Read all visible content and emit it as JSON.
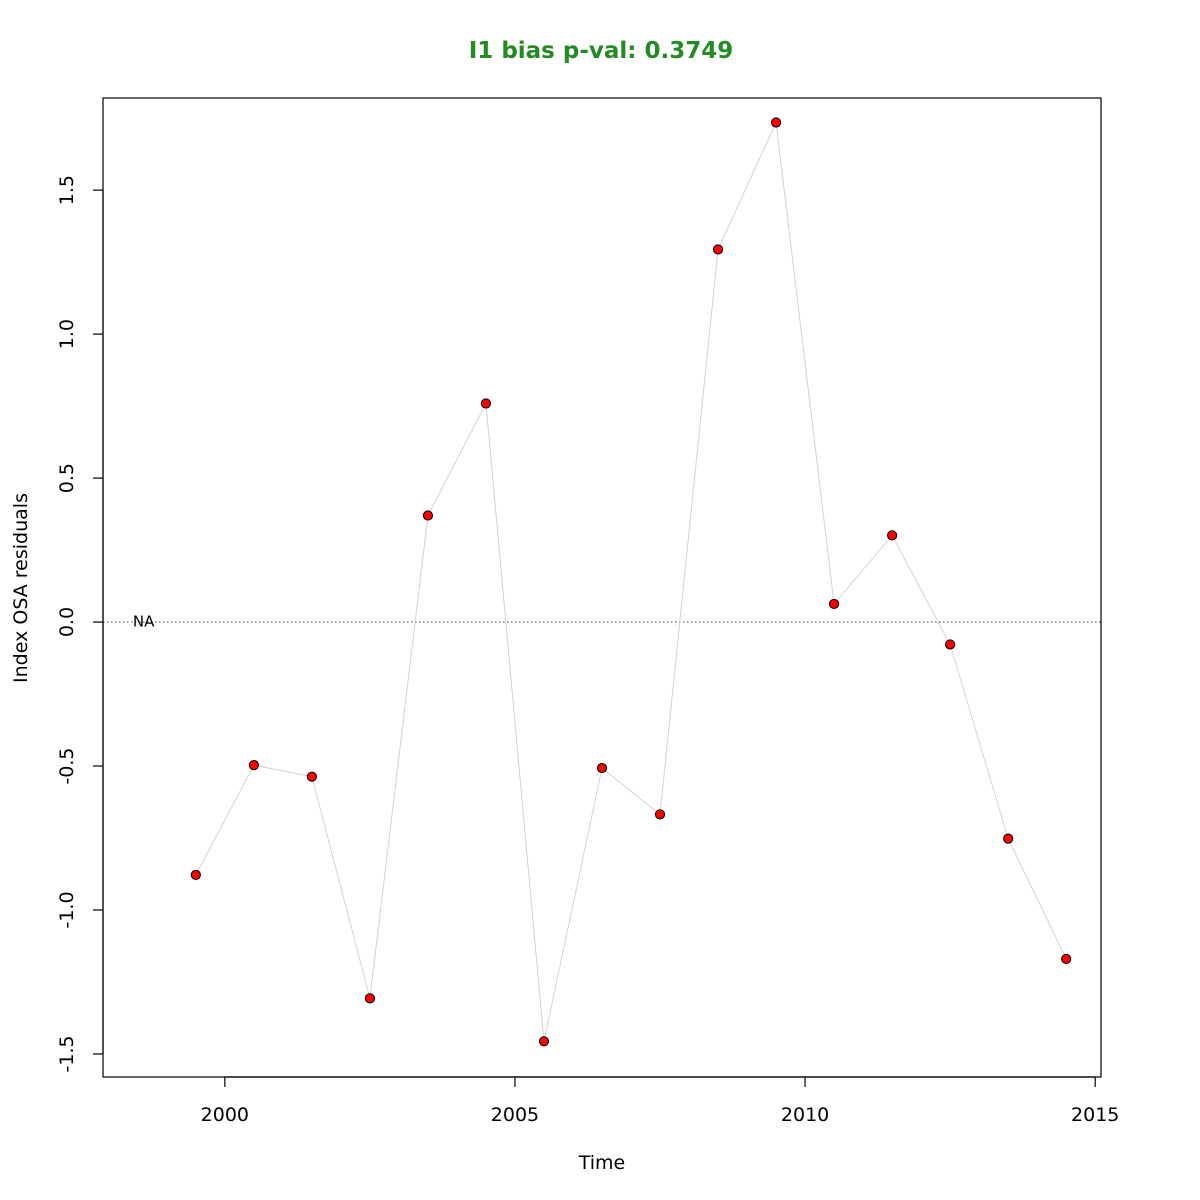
{
  "chart_data": {
    "type": "scatter",
    "title": "I1 bias p-val: 0.3749",
    "title_color": "#228B22",
    "xlabel": "Time",
    "ylabel": "Index OSA residuals",
    "xlim": [
      1997.9,
      2015.1
    ],
    "ylim": [
      -1.58,
      1.82
    ],
    "x_ticks": [
      2000,
      2005,
      2010,
      2015
    ],
    "x_tick_labels": [
      "2000",
      "2005",
      "2010",
      "2015"
    ],
    "y_ticks": [
      -1.5,
      -1.0,
      -0.5,
      0.0,
      0.5,
      1.0,
      1.5
    ],
    "y_tick_labels": [
      "-1.5",
      "-1.0",
      "-0.5",
      "0.0",
      "0.5",
      "1.0",
      "1.5"
    ],
    "reference_line": {
      "y": 0,
      "style": "dotted",
      "color": "#555555"
    },
    "annotation": {
      "text": "NA",
      "x": 1998.6,
      "y": 0.0
    },
    "grid": false,
    "connector_color": "#d3d3d3",
    "point_fill": "#ff0000",
    "point_stroke": "#000000",
    "series": [
      {
        "x": [
          1999.5,
          2000.5,
          2001.5,
          2002.5,
          2003.5,
          2004.5,
          2005.5,
          2006.5,
          2007.5,
          2008.5,
          2009.5,
          2010.5,
          2011.5,
          2012.5,
          2013.5,
          2014.5
        ],
        "values": [
          -0.878,
          -0.497,
          -0.537,
          -1.307,
          0.37,
          0.759,
          -1.456,
          -0.507,
          -0.668,
          1.294,
          1.735,
          0.063,
          0.301,
          -0.078,
          -0.752,
          -1.17
        ]
      }
    ]
  }
}
